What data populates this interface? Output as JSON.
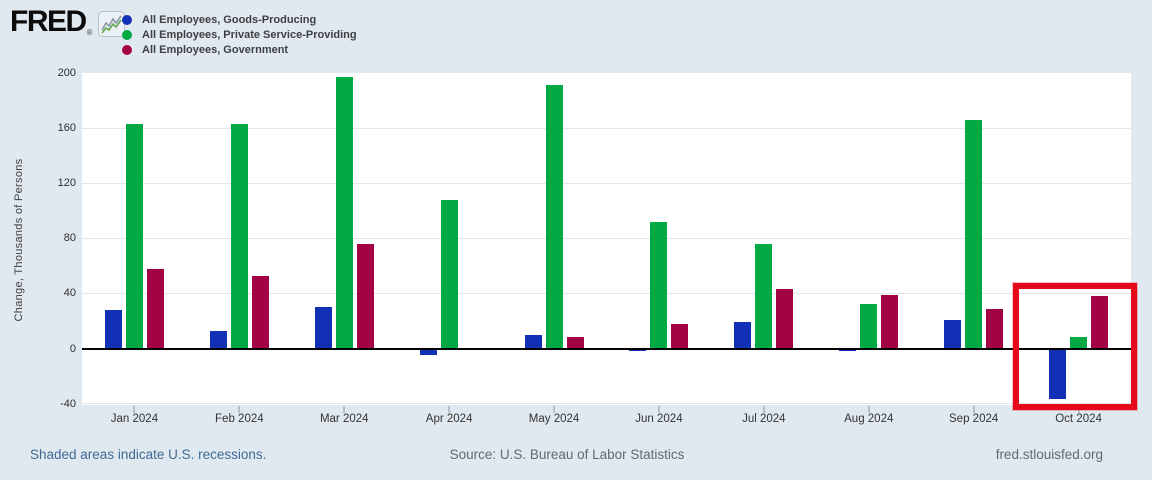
{
  "header": {
    "logo_text": "FRED",
    "logo_registered": "®"
  },
  "legend": {
    "items": [
      {
        "label": "All Employees, Goods-Producing",
        "color": "#1230b5"
      },
      {
        "label": "All Employees, Private Service-Providing",
        "color": "#00a944"
      },
      {
        "label": "All Employees, Government",
        "color": "#a30345"
      }
    ]
  },
  "chart_data": {
    "type": "bar",
    "ylabel": "Change, Thousands of Persons",
    "categories": [
      "Jan 2024",
      "Feb 2024",
      "Mar 2024",
      "Apr 2024",
      "May 2024",
      "Jun 2024",
      "Jul 2024",
      "Aug 2024",
      "Sep 2024",
      "Oct 2024"
    ],
    "series": [
      {
        "name": "All Employees, Goods-Producing",
        "color": "#1230b5",
        "values": [
          28,
          13,
          30,
          -5,
          10,
          -2,
          19,
          -2,
          21,
          -37
        ]
      },
      {
        "name": "All Employees, Private Service-Providing",
        "color": "#00a944",
        "values": [
          163,
          163,
          197,
          108,
          191,
          92,
          76,
          32,
          166,
          8
        ]
      },
      {
        "name": "All Employees, Government",
        "color": "#a30345",
        "values": [
          58,
          53,
          76,
          0,
          8,
          18,
          43,
          39,
          29,
          38
        ]
      }
    ],
    "yticks": [
      200,
      160,
      120,
      80,
      40,
      0,
      -40
    ],
    "ylim": [
      -41,
      200
    ],
    "grid": true,
    "legend_position": "top-left",
    "zero_line": true,
    "highlight": {
      "category": "Oct 2024",
      "color": "#e5091c"
    }
  },
  "footer": {
    "recession_note": "Shaded areas indicate U.S. recessions.",
    "source": "Source: U.S. Bureau of Labor Statistics",
    "site": "fred.stlouisfed.org"
  }
}
